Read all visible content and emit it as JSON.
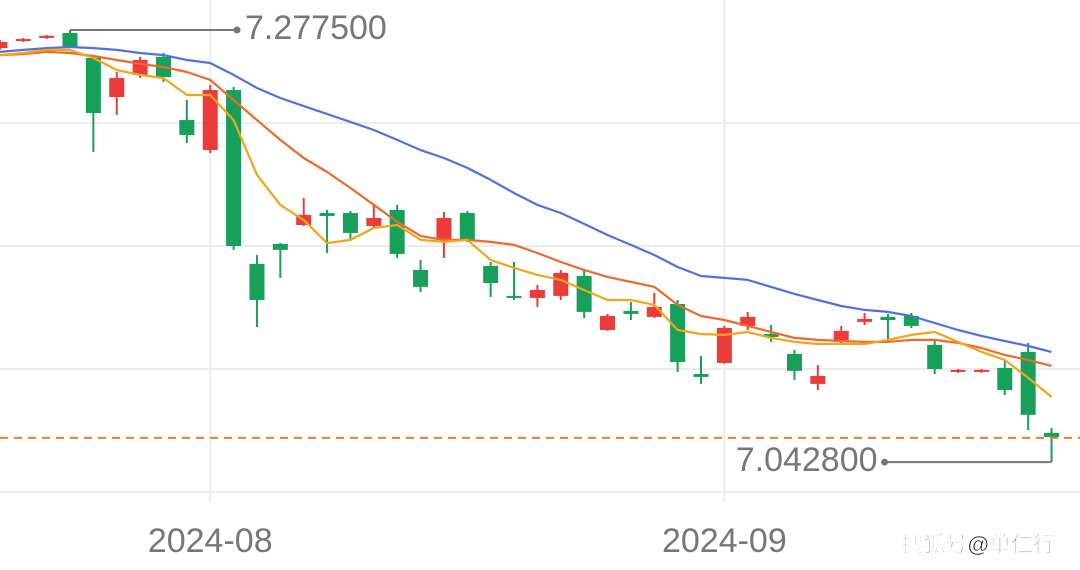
{
  "chart_data": {
    "type": "candlestick",
    "categories": [
      null,
      null,
      null,
      null,
      null,
      null,
      null,
      null,
      null,
      "2024-08",
      null,
      null,
      null,
      null,
      null,
      null,
      null,
      null,
      null,
      null,
      null,
      null,
      null,
      null,
      null,
      null,
      null,
      null,
      null,
      null,
      null,
      "2024-09",
      null,
      null,
      null,
      null,
      null,
      null,
      null,
      null,
      null,
      null,
      null,
      null,
      null,
      null
    ],
    "open": [
      7.2677,
      7.2715,
      7.2732,
      7.2759,
      7.2623,
      7.2411,
      7.2531,
      7.2629,
      7.2286,
      7.2123,
      7.2449,
      7.1505,
      7.1613,
      7.1716,
      7.1781,
      7.1781,
      7.1711,
      7.1798,
      7.1472,
      7.1635,
      7.1781,
      7.1494,
      7.1331,
      7.132,
      7.1331,
      7.1439,
      7.1146,
      7.1249,
      7.1217,
      7.1287,
      7.0907,
      7.0967,
      7.1168,
      7.1124,
      7.1016,
      7.0853,
      7.1081,
      7.119,
      7.1217,
      7.1222,
      7.1065,
      7.0918,
      7.0918,
      7.094,
      7.1027,
      7.0587
    ],
    "high": [
      7.2721,
      7.2732,
      7.2748,
      7.2775,
      7.2639,
      7.2547,
      7.2629,
      7.265,
      7.2395,
      7.2476,
      7.2466,
      7.1553,
      7.1618,
      7.1863,
      7.1798,
      7.1792,
      7.1825,
      7.1825,
      7.1526,
      7.1787,
      7.1792,
      7.1515,
      7.1515,
      7.139,
      7.1472,
      7.1472,
      7.1233,
      7.1298,
      7.1347,
      7.1309,
      7.1005,
      7.1168,
      7.1244,
      7.1173,
      7.1038,
      7.0956,
      7.1168,
      7.1238,
      7.1233,
      7.1238,
      7.1092,
      7.0934,
      7.0934,
      7.0983,
      7.1076,
      7.0614
    ],
    "low": [
      7.2667,
      7.271,
      7.2726,
      7.2677,
      7.2113,
      7.2314,
      7.2514,
      7.2493,
      7.2161,
      7.2107,
      7.1581,
      7.1162,
      7.1429,
      7.1711,
      7.1564,
      7.1635,
      7.17,
      7.1537,
      7.1352,
      7.1537,
      7.1624,
      7.1325,
      7.1309,
      7.1271,
      7.1309,
      7.1211,
      7.1141,
      7.12,
      7.1211,
      7.0918,
      7.0853,
      7.0962,
      7.1146,
      7.1081,
      7.0875,
      7.082,
      7.107,
      7.1173,
      7.1081,
      7.1157,
      7.0907,
      7.0913,
      7.0913,
      7.0793,
      7.0603,
      7.0428
    ],
    "close": [
      7.271,
      7.2726,
      7.2743,
      7.2683,
      7.2324,
      7.2514,
      7.2612,
      7.252,
      7.2205,
      7.2449,
      7.1602,
      7.1309,
      7.1581,
      7.1771,
      7.1765,
      7.1673,
      7.1754,
      7.1559,
      7.138,
      7.1754,
      7.1635,
      7.1401,
      7.132,
      7.1363,
      7.1456,
      7.1244,
      7.1222,
      7.1233,
      7.1271,
      7.0972,
      7.0891,
      7.1157,
      7.1217,
      7.1108,
      7.0924,
      7.0896,
      7.1141,
      7.1206,
      7.12,
      7.1168,
      7.0934,
      7.0929,
      7.0929,
      7.082,
      7.0685,
      7.0565
    ],
    "up_color": "#ec3b3b",
    "down_color": "#16a05a",
    "lines": [
      {
        "color": "#5470e0",
        "values": [
          7.2656,
          7.2667,
          7.2677,
          7.2683,
          7.2677,
          7.2667,
          7.265,
          7.2639,
          7.2612,
          7.2596,
          7.2531,
          7.246,
          7.2406,
          7.2362,
          7.2319,
          7.2276,
          7.2232,
          7.2178,
          7.2123,
          7.208,
          7.2026,
          7.1961,
          7.189,
          7.1825,
          7.1781,
          7.1722,
          7.1662,
          7.1608,
          7.1553,
          7.1488,
          7.1439,
          7.1429,
          7.1418,
          7.138,
          7.1342,
          7.1309,
          7.1276,
          7.1255,
          7.1244,
          7.1222,
          7.1184,
          7.1146,
          7.1114,
          7.1086,
          7.1059,
          7.1027
        ]
      },
      {
        "color": "#ee6a2c",
        "values": [
          7.2639,
          7.2645,
          7.2656,
          7.265,
          7.2634,
          7.2612,
          7.2591,
          7.2574,
          7.2547,
          7.2504,
          7.2395,
          7.2286,
          7.2178,
          7.208,
          7.2004,
          7.1917,
          7.1825,
          7.1733,
          7.1657,
          7.1635,
          7.1635,
          7.1624,
          7.1608,
          7.1564,
          7.1515,
          7.1472,
          7.1434,
          7.1407,
          7.138,
          7.1282,
          7.1222,
          7.12,
          7.1168,
          7.1135,
          7.1103,
          7.1092,
          7.1086,
          7.1081,
          7.1081,
          7.1092,
          7.1092,
          7.1076,
          7.1048,
          7.101,
          7.0983,
          7.0951
        ]
      },
      {
        "color": "#f3a418",
        "values": [
          7.2639,
          7.265,
          7.2667,
          7.2667,
          7.2623,
          7.2558,
          7.2531,
          7.2514,
          7.2422,
          7.2422,
          7.2286,
          7.1988,
          7.1825,
          7.1743,
          7.1618,
          7.1635,
          7.17,
          7.1716,
          7.1635,
          7.1624,
          7.1635,
          7.1526,
          7.1483,
          7.1445,
          7.1418,
          7.1363,
          7.1309,
          7.1309,
          7.1282,
          7.1146,
          7.1124,
          7.1119,
          7.1135,
          7.1103,
          7.1081,
          7.107,
          7.107,
          7.107,
          7.1092,
          7.1119,
          7.1135,
          7.1081,
          7.1027,
          7.0983,
          7.0886,
          7.0782
        ]
      }
    ],
    "reference_line": {
      "value": 7.056,
      "color": "#f07a2a"
    },
    "annotations": [
      {
        "label": "7.277500",
        "value": 7.2775,
        "index": 3
      },
      {
        "label": "7.042800",
        "value": 7.0428,
        "index": 45
      }
    ],
    "ylim": [
      7.0266,
      7.2938
    ],
    "yticks": [
      7.0934,
      7.1602,
      7.227
    ],
    "grid": true,
    "watermark": "搜狐号@单仁行"
  }
}
